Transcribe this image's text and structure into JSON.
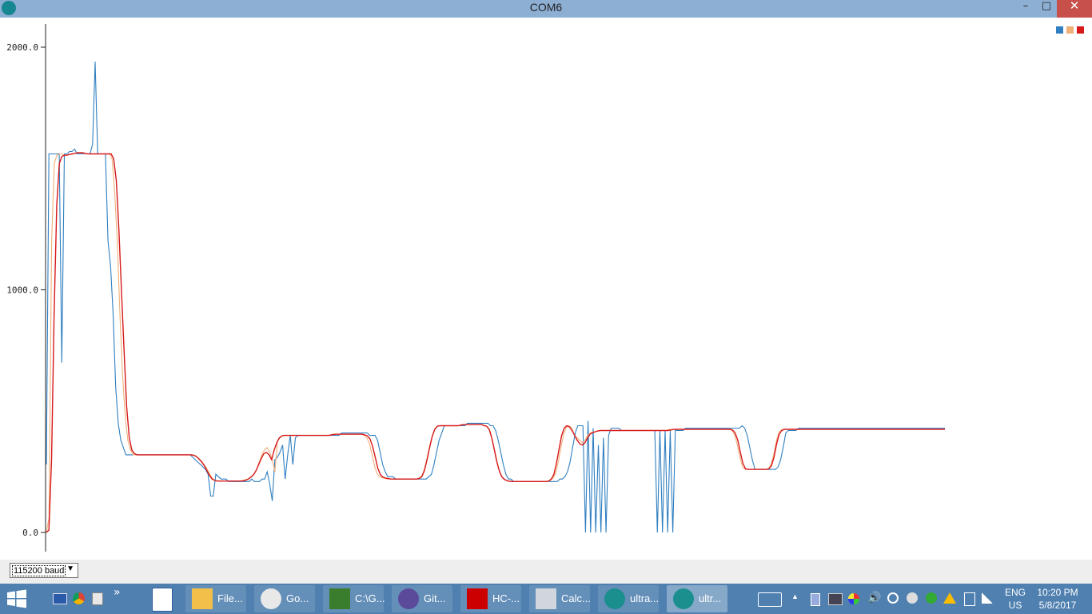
{
  "window": {
    "title": "COM6",
    "minimize_glyph": "–",
    "maximize_glyph": "□",
    "close_glyph": "✕"
  },
  "plotter": {
    "y_axis_ticks": [
      "2000.0",
      "1000.0",
      "0.0"
    ],
    "legend_colors": [
      "#2f7fc1",
      "#f0b07a",
      "#d7191c"
    ]
  },
  "chart_data": {
    "type": "line",
    "ylim": [
      0,
      2100
    ],
    "grid": false,
    "legend": "top-right",
    "series": [
      {
        "color": "#2f7fc1",
        "values": [
          280,
          1560,
          1560,
          1560,
          1560,
          1560,
          700,
          1560,
          1560,
          1570,
          1570,
          1580,
          1560,
          1560,
          1560,
          1560,
          1560,
          1560,
          1600,
          1940,
          1560,
          1560,
          1560,
          1560,
          1200,
          1100,
          900,
          600,
          450,
          380,
          350,
          320,
          320,
          320,
          320,
          320,
          320,
          320,
          320,
          320,
          320,
          320,
          320,
          320,
          320,
          320,
          320,
          320,
          320,
          320,
          320,
          320,
          320,
          320,
          320,
          320,
          320,
          310,
          300,
          290,
          280,
          270,
          260,
          240,
          150,
          150,
          240,
          230,
          220,
          220,
          220,
          210,
          210,
          210,
          210,
          210,
          210,
          210,
          210,
          210,
          220,
          210,
          210,
          210,
          220,
          220,
          250,
          200,
          130,
          300,
          310,
          330,
          360,
          220,
          320,
          400,
          280,
          390,
          400,
          400,
          400,
          400,
          400,
          400,
          400,
          400,
          400,
          400,
          400,
          400,
          400,
          400,
          400,
          400,
          400,
          410,
          410,
          410,
          410,
          410,
          410,
          410,
          410,
          410,
          410,
          410,
          400,
          400,
          400,
          380,
          330,
          280,
          250,
          230,
          230,
          230,
          220,
          220,
          220,
          220,
          220,
          220,
          220,
          220,
          220,
          220,
          220,
          220,
          220,
          230,
          240,
          280,
          330,
          380,
          410,
          440,
          440,
          440,
          440,
          440,
          440,
          440,
          440,
          440,
          450,
          450,
          450,
          450,
          450,
          450,
          450,
          450,
          450,
          440,
          440,
          420,
          380,
          330,
          280,
          240,
          220,
          220,
          210,
          210,
          210,
          210,
          210,
          210,
          210,
          210,
          210,
          210,
          210,
          210,
          210,
          210,
          210,
          210,
          210,
          210,
          220,
          220,
          230,
          250,
          290,
          350,
          410,
          440,
          440,
          440,
          0,
          460,
          0,
          430,
          0,
          360,
          0,
          390,
          0,
          400,
          430,
          430,
          430,
          430,
          420,
          420,
          420,
          420,
          420,
          420,
          420,
          420,
          420,
          420,
          420,
          420,
          420,
          420,
          0,
          420,
          0,
          420,
          0,
          420,
          0,
          420,
          420,
          420,
          420,
          430,
          430,
          430,
          430,
          430,
          430,
          430,
          430,
          430,
          430,
          430,
          430,
          430,
          430,
          430,
          430,
          430,
          430,
          430,
          430,
          430,
          430,
          440,
          430,
          400,
          350,
          300,
          260,
          260,
          260,
          260,
          260,
          260,
          260,
          260,
          260,
          270,
          300,
          350,
          410,
          420,
          420,
          420,
          420,
          430,
          430,
          430,
          430,
          430,
          430,
          430,
          430,
          430,
          430,
          430,
          430,
          430,
          430,
          430,
          430,
          430,
          430,
          430,
          430,
          430,
          430,
          430,
          430,
          430,
          430,
          430,
          430,
          430,
          430,
          430,
          430,
          430,
          430,
          430,
          430,
          430,
          430,
          430,
          430,
          430,
          430,
          430,
          430,
          430,
          430,
          430,
          430,
          430,
          430,
          430,
          430,
          430,
          430,
          430,
          430,
          430,
          430
        ]
      },
      {
        "color": "#f0b07a",
        "values": [
          0,
          60,
          1200,
          1520,
          1555,
          1558,
          1560,
          1555,
          1555,
          1560,
          1560,
          1562,
          1565,
          1565,
          1562,
          1560,
          1560,
          1560,
          1560,
          1560,
          1560,
          1560,
          1560,
          1560,
          1560,
          1540,
          1400,
          1200,
          900,
          650,
          480,
          380,
          340,
          320,
          320,
          320,
          320,
          320,
          320,
          320,
          320,
          320,
          320,
          320,
          320,
          320,
          320,
          320,
          320,
          320,
          320,
          320,
          320,
          320,
          320,
          320,
          320,
          315,
          305,
          295,
          280,
          265,
          245,
          225,
          215,
          212,
          212,
          212,
          212,
          212,
          212,
          212,
          212,
          212,
          212,
          215,
          218,
          222,
          230,
          240,
          260,
          290,
          320,
          340,
          350,
          330,
          300,
          250,
          380,
          390,
          400,
          400,
          400,
          400,
          400,
          400,
          400,
          400,
          400,
          400,
          400,
          400,
          400,
          400,
          400,
          400,
          400,
          400,
          400,
          405,
          405,
          405,
          405,
          405,
          405,
          405,
          405,
          405,
          405,
          405,
          405,
          400,
          390,
          365,
          320,
          270,
          240,
          228,
          225,
          222,
          220,
          220,
          220,
          220,
          220,
          220,
          220,
          220,
          220,
          220,
          220,
          220,
          225,
          235,
          265,
          310,
          360,
          400,
          430,
          440,
          440,
          440,
          440,
          440,
          440,
          440,
          440,
          440,
          445,
          445,
          445,
          445,
          445,
          445,
          445,
          445,
          445,
          440,
          435,
          415,
          370,
          320,
          270,
          235,
          220,
          215,
          212,
          210,
          210,
          210,
          210,
          210,
          210,
          210,
          210,
          210,
          210,
          210,
          210,
          210,
          210,
          210,
          215,
          225,
          250,
          300,
          360,
          410,
          435,
          440,
          430,
          400,
          390,
          380,
          370,
          380,
          400,
          410,
          415,
          415,
          420,
          420,
          420,
          420,
          420,
          420,
          420,
          420,
          420,
          420,
          420,
          420,
          420,
          420,
          420,
          420,
          420,
          420,
          420,
          420,
          420,
          420,
          420,
          420,
          420,
          420,
          420,
          425,
          425,
          425,
          425,
          425,
          425,
          425,
          425,
          425,
          425,
          425,
          425,
          425,
          425,
          425,
          425,
          425,
          425,
          425,
          425,
          425,
          425,
          425,
          425,
          420,
          400,
          360,
          310,
          270,
          260,
          260,
          260,
          260,
          260,
          260,
          260,
          260,
          260,
          265,
          285,
          330,
          385,
          415,
          425,
          425,
          425,
          425,
          425,
          425,
          425,
          425,
          425,
          425,
          425,
          425,
          425,
          425,
          425,
          425,
          425,
          425,
          425,
          425,
          425,
          425,
          425,
          425,
          425,
          425,
          425,
          425,
          425,
          425,
          425,
          425,
          425,
          425,
          425,
          425,
          425,
          425,
          425,
          425,
          425,
          425,
          425,
          425,
          425,
          425,
          425,
          425,
          425,
          425,
          425,
          425,
          425,
          425,
          425,
          425,
          425,
          425,
          425,
          425,
          425,
          425,
          425
        ]
      },
      {
        "color": "#d7191c",
        "values": [
          0,
          10,
          300,
          900,
          1350,
          1520,
          1550,
          1555,
          1555,
          1558,
          1560,
          1562,
          1565,
          1565,
          1565,
          1562,
          1560,
          1560,
          1560,
          1560,
          1560,
          1560,
          1560,
          1560,
          1560,
          1560,
          1540,
          1450,
          1250,
          1000,
          750,
          520,
          390,
          340,
          325,
          320,
          320,
          320,
          320,
          320,
          320,
          320,
          320,
          320,
          320,
          320,
          320,
          320,
          320,
          320,
          320,
          320,
          320,
          320,
          320,
          320,
          320,
          318,
          312,
          302,
          290,
          275,
          255,
          235,
          220,
          215,
          212,
          212,
          212,
          212,
          212,
          212,
          212,
          212,
          212,
          212,
          213,
          215,
          220,
          228,
          238,
          255,
          280,
          305,
          325,
          330,
          320,
          300,
          340,
          370,
          390,
          398,
          400,
          400,
          400,
          400,
          400,
          400,
          400,
          400,
          400,
          400,
          400,
          400,
          400,
          400,
          400,
          400,
          400,
          400,
          402,
          404,
          405,
          405,
          405,
          405,
          405,
          405,
          405,
          405,
          405,
          405,
          405,
          402,
          398,
          385,
          355,
          310,
          265,
          238,
          228,
          224,
          222,
          220,
          220,
          220,
          220,
          220,
          220,
          220,
          220,
          220,
          220,
          220,
          222,
          230,
          255,
          300,
          350,
          395,
          425,
          438,
          440,
          440,
          440,
          440,
          440,
          440,
          440,
          440,
          442,
          444,
          445,
          445,
          445,
          445,
          445,
          445,
          445,
          440,
          438,
          425,
          390,
          340,
          290,
          250,
          228,
          218,
          213,
          211,
          210,
          210,
          210,
          210,
          210,
          210,
          210,
          210,
          210,
          210,
          210,
          210,
          210,
          210,
          212,
          220,
          240,
          285,
          345,
          400,
          430,
          440,
          435,
          420,
          400,
          380,
          365,
          360,
          370,
          390,
          405,
          412,
          415,
          418,
          420,
          420,
          420,
          420,
          420,
          420,
          420,
          420,
          420,
          420,
          420,
          420,
          420,
          420,
          420,
          420,
          420,
          420,
          420,
          420,
          420,
          420,
          420,
          420,
          420,
          420,
          420,
          422,
          424,
          425,
          425,
          425,
          425,
          425,
          425,
          425,
          425,
          425,
          425,
          425,
          425,
          425,
          425,
          425,
          425,
          425,
          425,
          425,
          425,
          425,
          425,
          422,
          410,
          380,
          330,
          285,
          262,
          260,
          260,
          260,
          260,
          260,
          260,
          260,
          260,
          262,
          275,
          310,
          365,
          405,
          420,
          425,
          425,
          425,
          425,
          425,
          425,
          425,
          425,
          425,
          425,
          425,
          425,
          425,
          425,
          425,
          425,
          425,
          425,
          425,
          425,
          425,
          425,
          425,
          425,
          425,
          425,
          425,
          425,
          425,
          425,
          425,
          425,
          425,
          425,
          425,
          425,
          425,
          425,
          425,
          425,
          425,
          425,
          425,
          425,
          425,
          425,
          425,
          425,
          425,
          425,
          425,
          425,
          425,
          425,
          425,
          425,
          425,
          425,
          425,
          425,
          425,
          425,
          425
        ]
      }
    ]
  },
  "controls": {
    "baud_rate": "115200 baud"
  },
  "taskbar": {
    "tasks": [
      {
        "label": "File..."
      },
      {
        "label": "Go..."
      },
      {
        "label": "C:\\G..."
      },
      {
        "label": "Git..."
      },
      {
        "label": "HC-..."
      },
      {
        "label": "Calc..."
      },
      {
        "label": "ultra..."
      },
      {
        "label": "ultr..."
      }
    ],
    "language": "ENG",
    "region": "US",
    "time": "10:20 PM",
    "date": "5/8/2017",
    "overflow_glyph": "»",
    "tray_arrow": "▲"
  }
}
